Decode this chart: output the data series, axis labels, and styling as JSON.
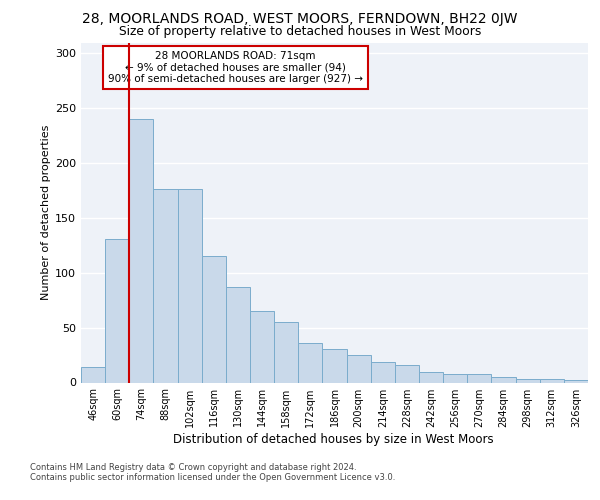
{
  "title_line1": "28, MOORLANDS ROAD, WEST MOORS, FERNDOWN, BH22 0JW",
  "title_line2": "Size of property relative to detached houses in West Moors",
  "xlabel": "Distribution of detached houses by size in West Moors",
  "ylabel": "Number of detached properties",
  "categories": [
    "46sqm",
    "60sqm",
    "74sqm",
    "88sqm",
    "102sqm",
    "116sqm",
    "130sqm",
    "144sqm",
    "158sqm",
    "172sqm",
    "186sqm",
    "200sqm",
    "214sqm",
    "228sqm",
    "242sqm",
    "256sqm",
    "270sqm",
    "284sqm",
    "298sqm",
    "312sqm",
    "326sqm"
  ],
  "values": [
    14,
    131,
    240,
    176,
    176,
    115,
    87,
    65,
    55,
    36,
    31,
    25,
    19,
    16,
    10,
    8,
    8,
    5,
    3,
    3,
    2
  ],
  "bar_color": "#c9d9ea",
  "bar_edge_color": "#7aaccc",
  "vline_x_pos": 1.5,
  "vline_color": "#cc0000",
  "annotation_text": "28 MOORLANDS ROAD: 71sqm\n← 9% of detached houses are smaller (94)\n90% of semi-detached houses are larger (927) →",
  "annotation_box_facecolor": "#ffffff",
  "annotation_box_edgecolor": "#cc0000",
  "ylim_max": 310,
  "yticks": [
    0,
    50,
    100,
    150,
    200,
    250,
    300
  ],
  "bg_color": "#eef2f8",
  "grid_color": "#ffffff",
  "footer1": "Contains HM Land Registry data © Crown copyright and database right 2024.",
  "footer2": "Contains public sector information licensed under the Open Government Licence v3.0."
}
